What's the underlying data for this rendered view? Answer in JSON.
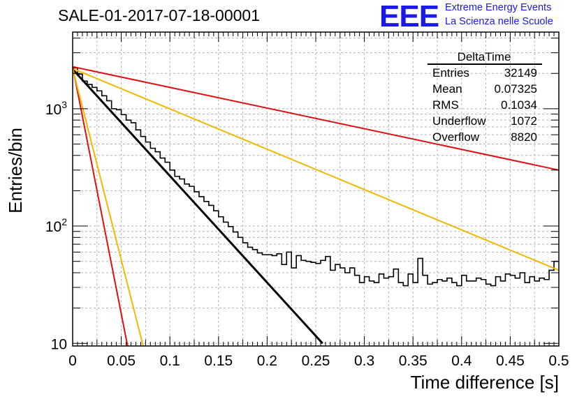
{
  "header": {
    "title": "SALE-01-2017-07-18-00001",
    "logo_text": "EEE",
    "logo_line1": "Extreme Energy Events",
    "logo_line2": "La Scienza nelle Scuole"
  },
  "stats_box": {
    "name": "DeltaTime",
    "rows": [
      {
        "label": "Entries",
        "value": "32149"
      },
      {
        "label": "Mean",
        "value": "0.07325"
      },
      {
        "label": "RMS",
        "value": "0.1034"
      },
      {
        "label": "Underflow",
        "value": "1072"
      },
      {
        "label": "Overflow",
        "value": "8820"
      }
    ]
  },
  "chart_data": {
    "type": "line",
    "title": "SALE-01-2017-07-18-00001",
    "xlabel": "Time difference [s]",
    "ylabel": "Entries/bin",
    "xlim": [
      0,
      0.5
    ],
    "ylim": [
      9.5,
      4500
    ],
    "y_scale": "log",
    "grid": true,
    "x_ticks": [
      "0",
      "0.05",
      "0.1",
      "0.15",
      "0.2",
      "0.25",
      "0.3",
      "0.35",
      "0.4",
      "0.45",
      "0.5"
    ],
    "x_tick_values": [
      0,
      0.05,
      0.1,
      0.15,
      0.2,
      0.25,
      0.3,
      0.35,
      0.4,
      0.45,
      0.5
    ],
    "y_ticks": [
      {
        "value": 10,
        "base": "10",
        "exp": ""
      },
      {
        "value": 100,
        "base": "10",
        "exp": "2"
      },
      {
        "value": 1000,
        "base": "10",
        "exp": "3"
      }
    ],
    "histogram": {
      "bin_width": 0.005,
      "color": "#000000",
      "values": [
        2230,
        1970,
        1720,
        1610,
        1520,
        1420,
        1290,
        1170,
        1000,
        980,
        890,
        800,
        760,
        660,
        580,
        520,
        460,
        430,
        380,
        350,
        300,
        265,
        252,
        228,
        218,
        196,
        178,
        162,
        150,
        135,
        120,
        108,
        99,
        89,
        80,
        72,
        66,
        63,
        59,
        57,
        57,
        56,
        58,
        47,
        60,
        44,
        56,
        51,
        50,
        49,
        48,
        51,
        55,
        42,
        47,
        44,
        40,
        44,
        38,
        33,
        37,
        34,
        33,
        39,
        36,
        37,
        43,
        33,
        31,
        39,
        33,
        53,
        38,
        32,
        33,
        35,
        34,
        36,
        33,
        31,
        38,
        34,
        34,
        36,
        35,
        32,
        31,
        37,
        34,
        39,
        38,
        36,
        40,
        33,
        37,
        34,
        36,
        35,
        42,
        50
      ]
    },
    "series": [
      {
        "color": "#000000",
        "x": [
          0,
          0.257
        ],
        "y": [
          2170,
          10
        ]
      },
      {
        "color": "#dd1111",
        "x": [
          0,
          0.5
        ],
        "y": [
          2280,
          300
        ]
      },
      {
        "color": "#f5b800",
        "x": [
          0,
          0.5
        ],
        "y": [
          2200,
          42
        ]
      },
      {
        "color": "#dd1111",
        "x": [
          0,
          0.0565
        ],
        "y": [
          2280,
          9.5
        ]
      },
      {
        "color": "#f5b800",
        "x": [
          0,
          0.0725
        ],
        "y": [
          2200,
          9.5
        ]
      }
    ]
  }
}
